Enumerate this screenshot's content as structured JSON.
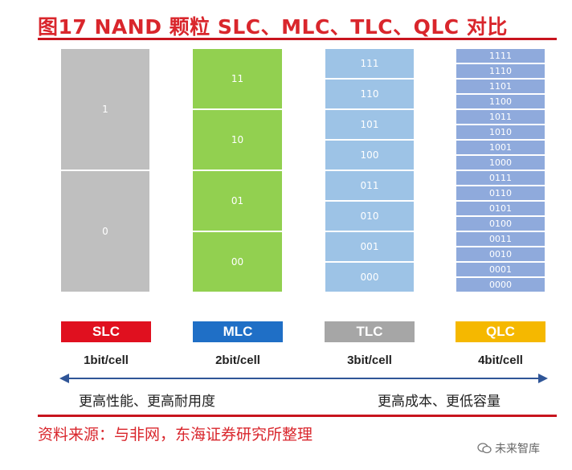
{
  "title": "图17  NAND 颗粒 SLC、MLC、TLC、QLC 对比",
  "columns": [
    {
      "id": "slc",
      "cells": [
        "1",
        "0"
      ],
      "badge": "SLC",
      "badge_color": "#e0101f",
      "bits": "1bit/cell"
    },
    {
      "id": "mlc",
      "cells": [
        "11",
        "10",
        "01",
        "00"
      ],
      "badge": "MLC",
      "badge_color": "#1f6fc6",
      "bits": "2bit/cell"
    },
    {
      "id": "tlc",
      "cells": [
        "111",
        "110",
        "101",
        "100",
        "011",
        "010",
        "001",
        "000"
      ],
      "badge": "TLC",
      "badge_color": "#a6a6a6",
      "bits": "3bit/cell"
    },
    {
      "id": "qlc",
      "cells": [
        "1111",
        "1110",
        "1101",
        "1100",
        "1011",
        "1010",
        "1001",
        "1000",
        "0111",
        "0110",
        "0101",
        "0100",
        "0011",
        "0010",
        "0001",
        "0000"
      ],
      "badge": "QLC",
      "badge_color": "#f5b800",
      "bits": "4bit/cell"
    }
  ],
  "arrow": {
    "left_text": "更高性能、更高耐用度",
    "right_text": "更高成本、更低容量",
    "color": "#2f5597"
  },
  "source": "资料来源：与非网，东海证券研究所整理",
  "watermark": "未来智库"
}
